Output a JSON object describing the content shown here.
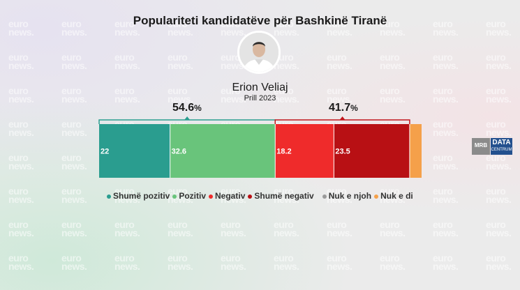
{
  "title": "Populariteti kandidatëve për Bashkinë Tiranë",
  "watermark": "euro news.",
  "candidate": {
    "name": "Erion Veliaj",
    "date": "Prill 2023"
  },
  "totals": [
    {
      "value": "54.6",
      "unit": "%",
      "color": "#2a9d8f"
    },
    {
      "value": "41.7",
      "unit": "%",
      "color": "#c0161c"
    }
  ],
  "chart_data": {
    "type": "bar",
    "orientation": "horizontal-stacked",
    "title": "Populariteti kandidatëve për Bashkinë Tiranë",
    "categories": [
      "Erion Veliaj"
    ],
    "xlim": [
      0,
      100
    ],
    "series": [
      {
        "name": "Shumë pozitiv",
        "values": [
          22
        ],
        "label": "22",
        "color": "#2a9d8f"
      },
      {
        "name": "Pozitiv",
        "values": [
          32.6
        ],
        "label": "32.6",
        "color": "#69c47b"
      },
      {
        "name": "Negativ",
        "values": [
          18.2
        ],
        "label": "18.2",
        "color": "#ef2b2b"
      },
      {
        "name": "Shumë negativ",
        "values": [
          23.5
        ],
        "label": "23.5",
        "color": "#b81014"
      },
      {
        "name": "Nuk e njoh",
        "values": [
          0
        ],
        "label": "",
        "color": "#9a9a9a"
      },
      {
        "name": "Nuk e di",
        "values": [
          3.7
        ],
        "label": "",
        "color": "#f5a04a"
      }
    ],
    "legend_position": "bottom",
    "grid": false
  },
  "brand": {
    "left": "MRB",
    "right_top": "DATA",
    "right_bottom": "CENTRUM"
  }
}
